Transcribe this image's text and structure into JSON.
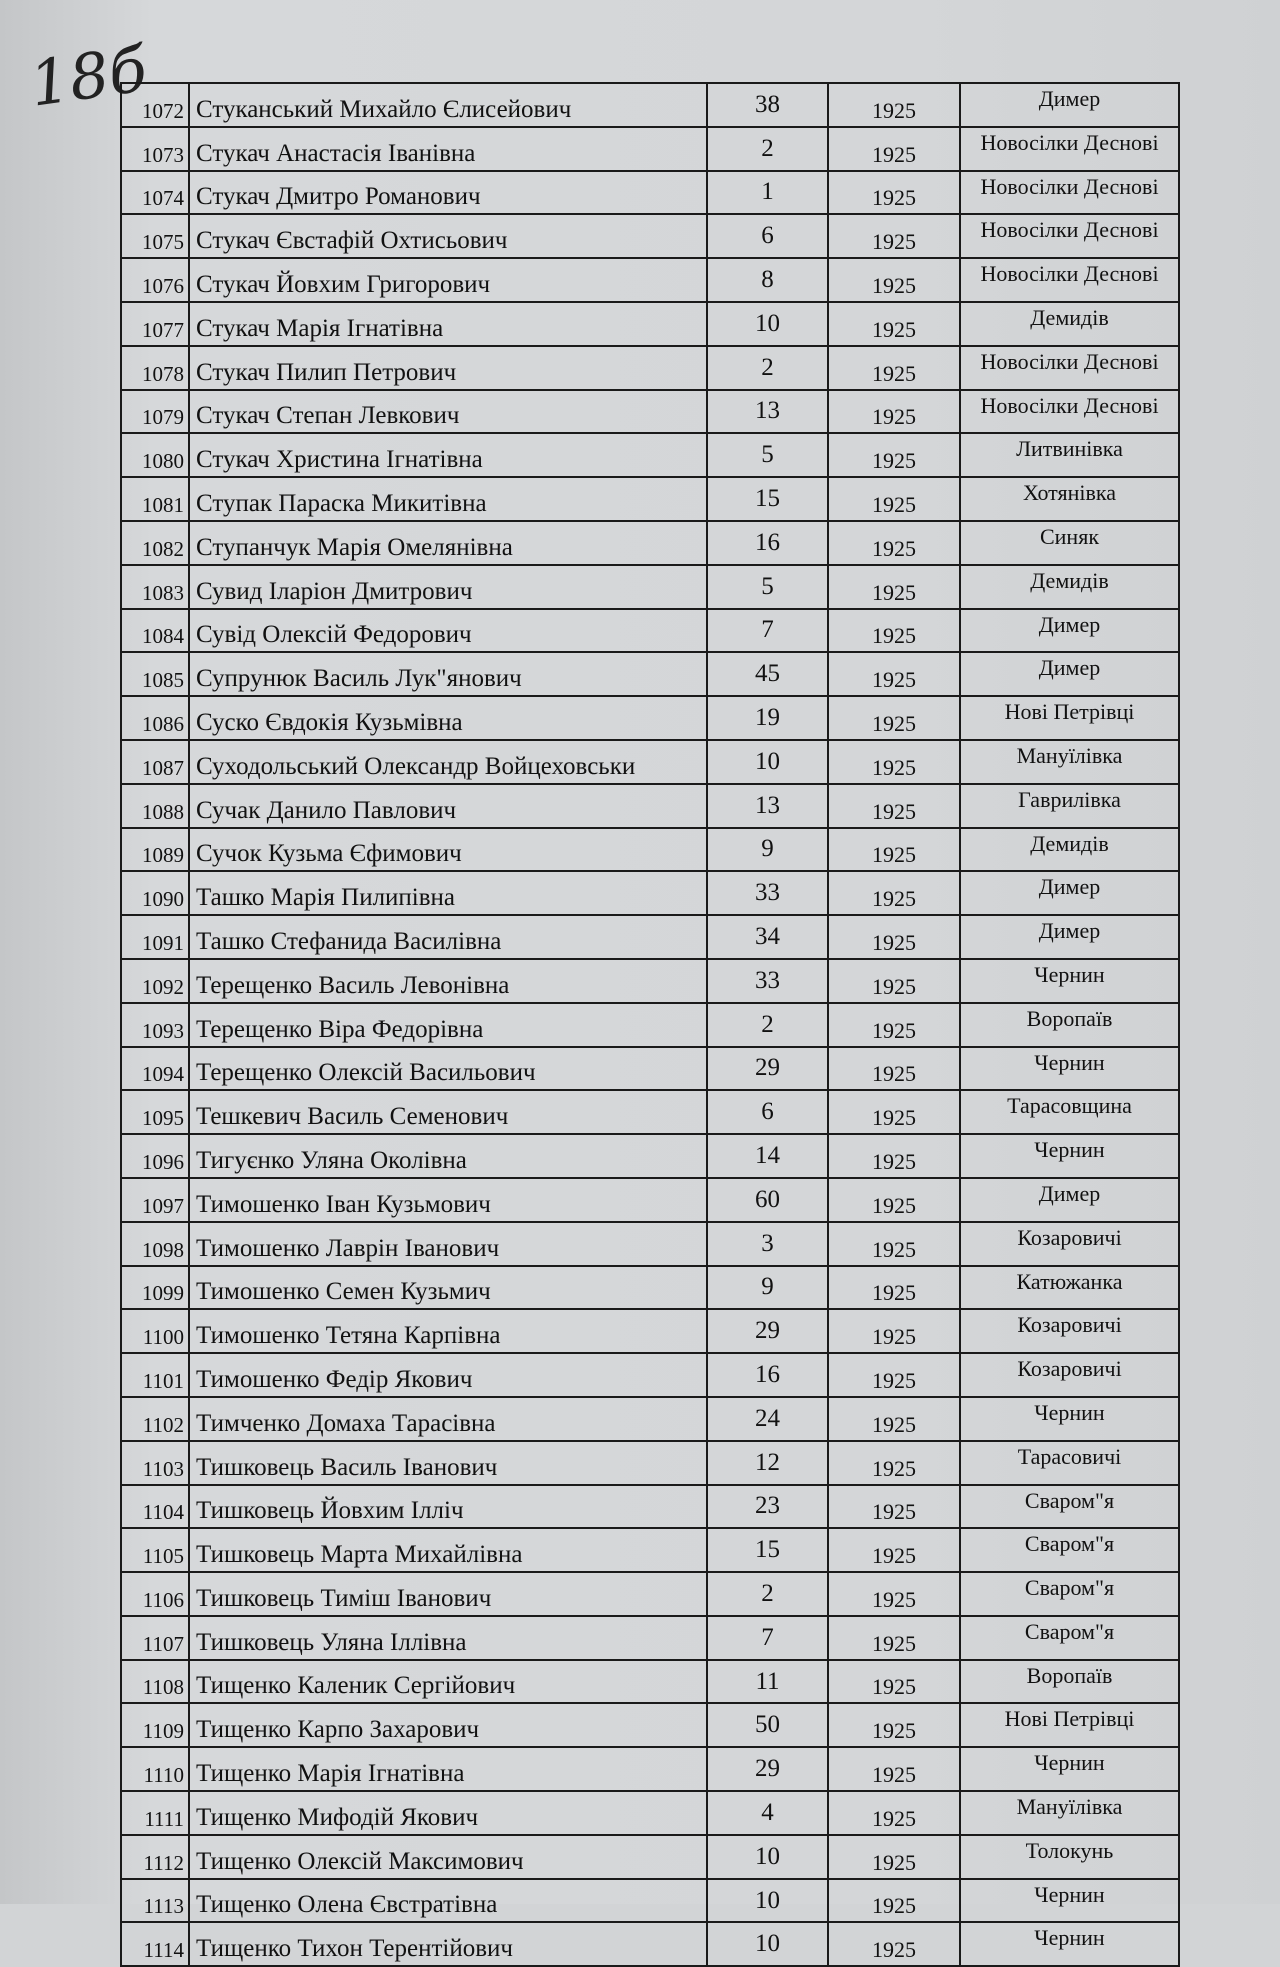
{
  "page_mark": "18б",
  "rows": [
    [
      "1072",
      "Стуканський Михайло Єлисейович",
      "38",
      "1925",
      "Димер"
    ],
    [
      "1073",
      "Стукач Анастасія Іванівна",
      "2",
      "1925",
      "Новосілки Деснові"
    ],
    [
      "1074",
      "Стукач Дмитро Романович",
      "1",
      "1925",
      "Новосілки Деснові"
    ],
    [
      "1075",
      "Стукач Євстафій Охтисьович",
      "6",
      "1925",
      "Новосілки Деснові"
    ],
    [
      "1076",
      "Стукач Йовхим Григорович",
      "8",
      "1925",
      "Новосілки Деснові"
    ],
    [
      "1077",
      "Стукач Марія Ігнатівна",
      "10",
      "1925",
      "Демидів"
    ],
    [
      "1078",
      "Стукач Пилип Петрович",
      "2",
      "1925",
      "Новосілки Деснові"
    ],
    [
      "1079",
      "Стукач Степан Левкович",
      "13",
      "1925",
      "Новосілки Деснові"
    ],
    [
      "1080",
      "Стукач Христина Ігнатівна",
      "5",
      "1925",
      "Литвинівка"
    ],
    [
      "1081",
      "Ступак Параска Микитівна",
      "15",
      "1925",
      "Хотянівка"
    ],
    [
      "1082",
      "Ступанчук Марія Омелянівна",
      "16",
      "1925",
      "Синяк"
    ],
    [
      "1083",
      "Сувид Іларіон Дмитрович",
      "5",
      "1925",
      "Демидів"
    ],
    [
      "1084",
      "Сувід Олексій Федорович",
      "7",
      "1925",
      "Димер"
    ],
    [
      "1085",
      "Супрунюк Василь Лук\"янович",
      "45",
      "1925",
      "Димер"
    ],
    [
      "1086",
      "Суско Євдокія Кузьмівна",
      "19",
      "1925",
      "Нові Петрівці"
    ],
    [
      "1087",
      "Суходольський Олександр Войцеховськи",
      "10",
      "1925",
      "Мануїлівка"
    ],
    [
      "1088",
      "Сучак Данило Павлович",
      "13",
      "1925",
      "Гаврилівка"
    ],
    [
      "1089",
      "Сучок Кузьма Єфимович",
      "9",
      "1925",
      "Демидів"
    ],
    [
      "1090",
      "Ташко Марія Пилипівна",
      "33",
      "1925",
      "Димер"
    ],
    [
      "1091",
      "Ташко Стефанида Василівна",
      "34",
      "1925",
      "Димер"
    ],
    [
      "1092",
      "Терещенко Василь Левонівна",
      "33",
      "1925",
      "Чернин"
    ],
    [
      "1093",
      "Терещенко Віра Федорівна",
      "2",
      "1925",
      "Воропаїв"
    ],
    [
      "1094",
      "Терещенко Олексій Васильович",
      "29",
      "1925",
      "Чернин"
    ],
    [
      "1095",
      "Тешкевич Василь Семенович",
      "6",
      "1925",
      "Тарасовщина"
    ],
    [
      "1096",
      "Тигуєнко Уляна Околівна",
      "14",
      "1925",
      "Чернин"
    ],
    [
      "1097",
      "Тимошенко Іван Кузьмович",
      "60",
      "1925",
      "Димер"
    ],
    [
      "1098",
      "Тимошенко Лаврін Іванович",
      "3",
      "1925",
      "Козаровичі"
    ],
    [
      "1099",
      "Тимошенко Семен Кузьмич",
      "9",
      "1925",
      "Катюжанка"
    ],
    [
      "1100",
      "Тимошенко Тетяна Карпівна",
      "29",
      "1925",
      "Козаровичі"
    ],
    [
      "1101",
      "Тимошенко Федір Якович",
      "16",
      "1925",
      "Козаровичі"
    ],
    [
      "1102",
      "Тимченко Домаха Тарасівна",
      "24",
      "1925",
      "Чернин"
    ],
    [
      "1103",
      "Тишковець Василь Іванович",
      "12",
      "1925",
      "Тарасовичі"
    ],
    [
      "1104",
      "Тишковець Йовхим Ілліч",
      "23",
      "1925",
      "Сваром\"я"
    ],
    [
      "1105",
      "Тишковець Марта Михайлівна",
      "15",
      "1925",
      "Сваром\"я"
    ],
    [
      "1106",
      "Тишковець Тиміш Іванович",
      "2",
      "1925",
      "Сваром\"я"
    ],
    [
      "1107",
      "Тишковець Уляна Іллівна",
      "7",
      "1925",
      "Сваром\"я"
    ],
    [
      "1108",
      "Тищенко Каленик Сергійович",
      "11",
      "1925",
      "Воропаїв"
    ],
    [
      "1109",
      "Тищенко Карпо Захарович",
      "50",
      "1925",
      "Нові Петрівці"
    ],
    [
      "1110",
      "Тищенко Марія Ігнатівна",
      "29",
      "1925",
      "Чернин"
    ],
    [
      "1111",
      "Тищенко Мифодій Якович",
      "4",
      "1925",
      "Мануїлівка"
    ],
    [
      "1112",
      "Тищенко Олексій Максимович",
      "10",
      "1925",
      "Толокунь"
    ],
    [
      "1113",
      "Тищенко Олена Євстратівна",
      "10",
      "1925",
      "Чернин"
    ],
    [
      "1114",
      "Тищенко Тихон Терентійович",
      "10",
      "1925",
      "Чернин"
    ]
  ]
}
